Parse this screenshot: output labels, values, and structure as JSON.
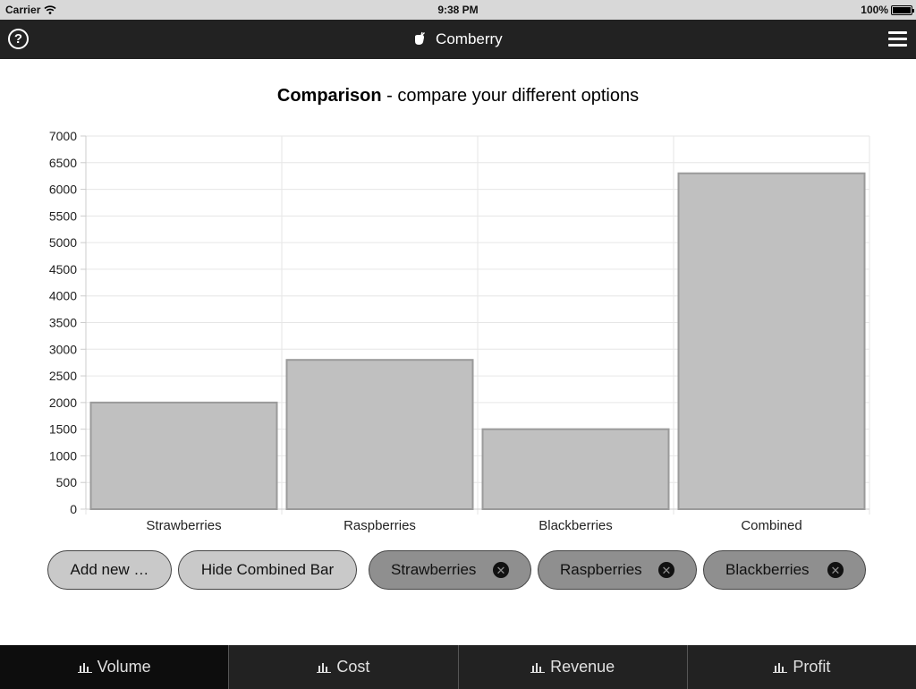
{
  "status_bar": {
    "carrier": "Carrier",
    "time": "9:38 PM",
    "battery": "100%"
  },
  "nav": {
    "title": "Comberry",
    "help_icon": "help-circle-icon",
    "menu_icon": "hamburger-menu-icon"
  },
  "heading": {
    "bold": "Comparison",
    "rest": " - compare your different options"
  },
  "chart_data": {
    "type": "bar",
    "categories": [
      "Strawberries",
      "Raspberries",
      "Blackberries",
      "Combined"
    ],
    "values": [
      2000,
      2800,
      1500,
      6300
    ],
    "ylim": [
      0,
      7000
    ],
    "yticks": [
      0,
      500,
      1000,
      1500,
      2000,
      2500,
      3000,
      3500,
      4000,
      4500,
      5000,
      5500,
      6000,
      6500,
      7000
    ],
    "title": "",
    "xlabel": "",
    "ylabel": "",
    "grid": true,
    "bar_color": "#c0c0c0",
    "bar_border": "#9a9a9a"
  },
  "options": {
    "add_label": "Add new …",
    "hide_label": "Hide Combined Bar",
    "items": [
      {
        "label": "Strawberries"
      },
      {
        "label": "Raspberries"
      },
      {
        "label": "Blackberries"
      }
    ]
  },
  "tabs": [
    {
      "label": "Volume",
      "active": true
    },
    {
      "label": "Cost"
    },
    {
      "label": "Revenue"
    },
    {
      "label": "Profit"
    }
  ]
}
